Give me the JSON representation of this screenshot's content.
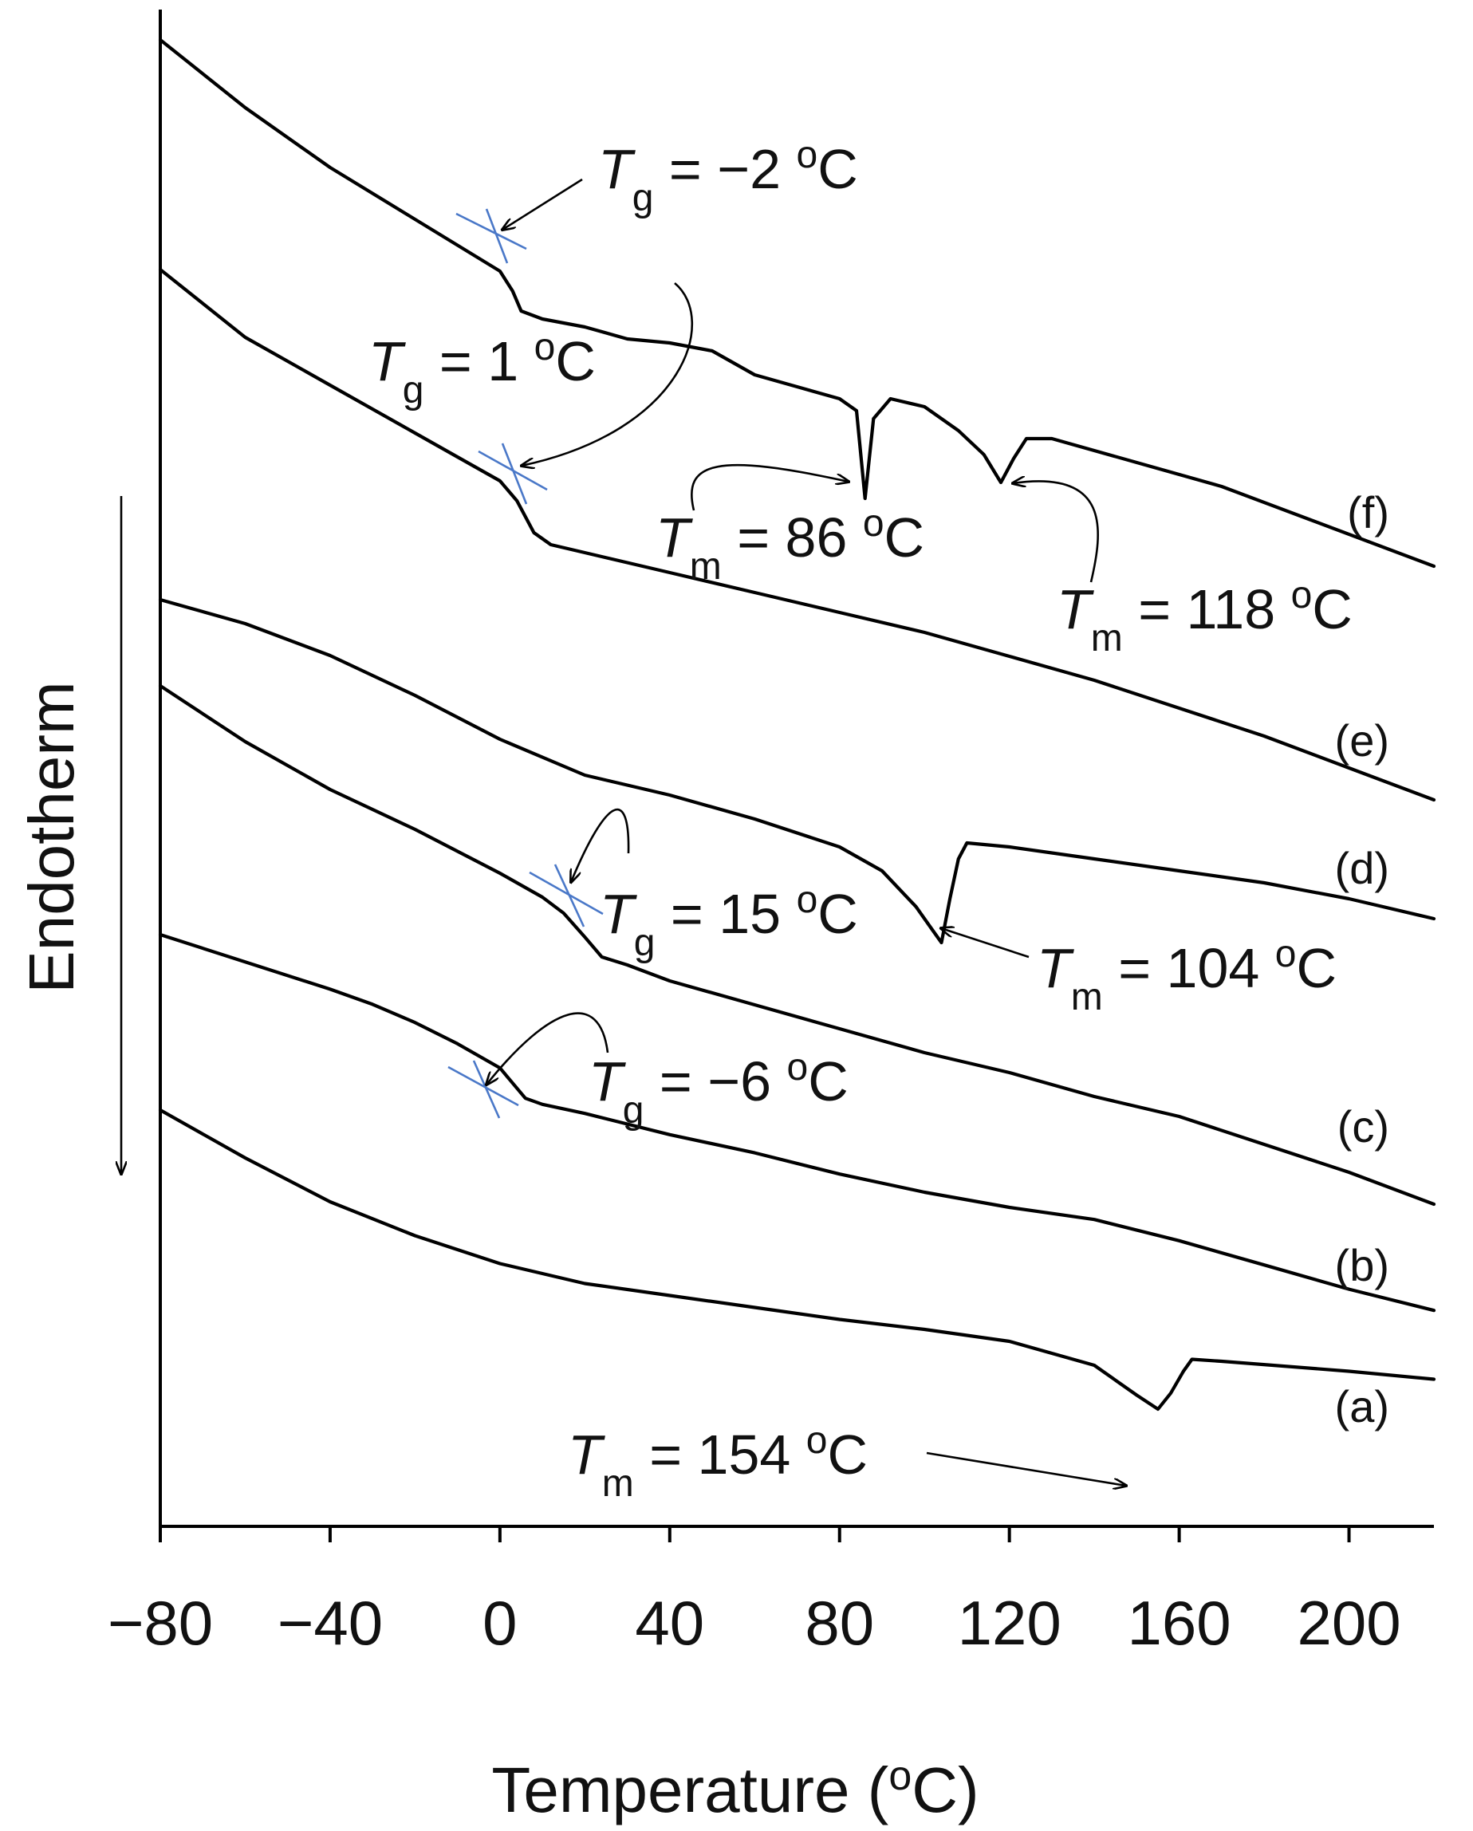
{
  "chart_data": {
    "type": "line",
    "title": "",
    "xlabel": "Temperature (°C)",
    "xlabel_parts": {
      "pre": "Temperature (",
      "sup": "o",
      "post": "C)"
    },
    "ylabel": "Endotherm",
    "xlim": [
      -80,
      220
    ],
    "xticks": [
      -80,
      -40,
      0,
      40,
      80,
      120,
      160,
      200
    ],
    "xtick_labels": [
      "−80",
      "−40",
      "0",
      "40",
      "80",
      "120",
      "160",
      "200"
    ],
    "grid": false,
    "legend": "none",
    "y_arrow_direction": "down",
    "series": [
      {
        "name": "(a)",
        "points": [
          [
            -80,
            0.0
          ],
          [
            -60,
            -0.24
          ],
          [
            -40,
            -0.46
          ],
          [
            -20,
            -0.63
          ],
          [
            0,
            -0.77
          ],
          [
            20,
            -0.87
          ],
          [
            40,
            -0.93
          ],
          [
            60,
            -0.99
          ],
          [
            80,
            -1.05
          ],
          [
            100,
            -1.1
          ],
          [
            120,
            -1.16
          ],
          [
            140,
            -1.28
          ],
          [
            150,
            -1.43
          ],
          [
            155,
            -1.5
          ],
          [
            158,
            -1.42
          ],
          [
            161,
            -1.31
          ],
          [
            163,
            -1.25
          ],
          [
            170,
            -1.26
          ],
          [
            200,
            -1.31
          ],
          [
            220,
            -1.35
          ]
        ],
        "annotations": [
          {
            "type": "Tm",
            "value": 154,
            "text": " = 154 °C"
          }
        ]
      },
      {
        "name": "(b)",
        "points": [
          [
            -80,
            0.0
          ],
          [
            -60,
            -0.09
          ],
          [
            -40,
            -0.18
          ],
          [
            -30,
            -0.23
          ],
          [
            -20,
            -0.29
          ],
          [
            -10,
            -0.36
          ],
          [
            0,
            -0.44
          ],
          [
            3,
            -0.49
          ],
          [
            6,
            -0.54
          ],
          [
            10,
            -0.56
          ],
          [
            20,
            -0.59
          ],
          [
            40,
            -0.66
          ],
          [
            60,
            -0.72
          ],
          [
            80,
            -0.79
          ],
          [
            100,
            -0.85
          ],
          [
            120,
            -0.9
          ],
          [
            140,
            -0.94
          ],
          [
            160,
            -1.01
          ],
          [
            180,
            -1.09
          ],
          [
            200,
            -1.17
          ],
          [
            220,
            -1.24
          ]
        ],
        "annotations": [
          {
            "type": "Tg",
            "value": -6,
            "text": " = −6 °C"
          }
        ]
      },
      {
        "name": "(c)",
        "points": [
          [
            -80,
            0.0
          ],
          [
            -60,
            -0.14
          ],
          [
            -40,
            -0.26
          ],
          [
            -20,
            -0.36
          ],
          [
            0,
            -0.47
          ],
          [
            10,
            -0.53
          ],
          [
            15,
            -0.57
          ],
          [
            20,
            -0.63
          ],
          [
            24,
            -0.68
          ],
          [
            30,
            -0.7
          ],
          [
            40,
            -0.74
          ],
          [
            60,
            -0.8
          ],
          [
            80,
            -0.86
          ],
          [
            100,
            -0.92
          ],
          [
            120,
            -0.97
          ],
          [
            140,
            -1.03
          ],
          [
            160,
            -1.08
          ],
          [
            180,
            -1.15
          ],
          [
            200,
            -1.22
          ],
          [
            220,
            -1.3
          ]
        ],
        "annotations": [
          {
            "type": "Tg",
            "value": 15,
            "text": " = 15 °C"
          }
        ]
      },
      {
        "name": "(d)",
        "points": [
          [
            -80,
            0.0
          ],
          [
            -60,
            -0.06
          ],
          [
            -40,
            -0.14
          ],
          [
            -20,
            -0.24
          ],
          [
            0,
            -0.35
          ],
          [
            20,
            -0.44
          ],
          [
            40,
            -0.49
          ],
          [
            60,
            -0.55
          ],
          [
            80,
            -0.62
          ],
          [
            90,
            -0.68
          ],
          [
            98,
            -0.77
          ],
          [
            102,
            -0.83
          ],
          [
            104,
            -0.86
          ],
          [
            106,
            -0.75
          ],
          [
            108,
            -0.65
          ],
          [
            110,
            -0.61
          ],
          [
            120,
            -0.62
          ],
          [
            140,
            -0.65
          ],
          [
            160,
            -0.68
          ],
          [
            180,
            -0.71
          ],
          [
            200,
            -0.75
          ],
          [
            220,
            -0.8
          ]
        ],
        "annotations": [
          {
            "type": "Tm",
            "value": 104,
            "text": " = 104 °C"
          }
        ]
      },
      {
        "name": "(e)",
        "points": [
          [
            -80,
            0.0
          ],
          [
            -60,
            -0.17
          ],
          [
            -40,
            -0.29
          ],
          [
            -20,
            -0.41
          ],
          [
            -10,
            -0.47
          ],
          [
            0,
            -0.53
          ],
          [
            4,
            -0.58
          ],
          [
            8,
            -0.66
          ],
          [
            12,
            -0.69
          ],
          [
            20,
            -0.71
          ],
          [
            40,
            -0.76
          ],
          [
            60,
            -0.81
          ],
          [
            80,
            -0.86
          ],
          [
            100,
            -0.91
          ],
          [
            120,
            -0.97
          ],
          [
            140,
            -1.03
          ],
          [
            160,
            -1.1
          ],
          [
            180,
            -1.17
          ],
          [
            200,
            -1.25
          ],
          [
            220,
            -1.33
          ]
        ],
        "annotations": [
          {
            "type": "Tg",
            "value": 1,
            "text": " = 1 °C"
          }
        ]
      },
      {
        "name": "(f)",
        "points": [
          [
            -80,
            0.0
          ],
          [
            -60,
            -0.17
          ],
          [
            -40,
            -0.32
          ],
          [
            -20,
            -0.45
          ],
          [
            0,
            -0.58
          ],
          [
            3,
            -0.63
          ],
          [
            5,
            -0.68
          ],
          [
            10,
            -0.7
          ],
          [
            20,
            -0.72
          ],
          [
            30,
            -0.75
          ],
          [
            40,
            -0.76
          ],
          [
            50,
            -0.78
          ],
          [
            60,
            -0.84
          ],
          [
            70,
            -0.87
          ],
          [
            80,
            -0.9
          ],
          [
            84,
            -0.93
          ],
          [
            86,
            -1.15
          ],
          [
            88,
            -0.95
          ],
          [
            92,
            -0.9
          ],
          [
            100,
            -0.92
          ],
          [
            108,
            -0.98
          ],
          [
            114,
            -1.04
          ],
          [
            118,
            -1.11
          ],
          [
            121,
            -1.05
          ],
          [
            124,
            -1.0
          ],
          [
            130,
            -1.0
          ],
          [
            150,
            -1.06
          ],
          [
            170,
            -1.12
          ],
          [
            190,
            -1.2
          ],
          [
            220,
            -1.32
          ]
        ],
        "annotations": [
          {
            "type": "Tg",
            "value": -2,
            "text": " = −2 °C"
          },
          {
            "type": "Tm",
            "value": 86,
            "text": " = 86 °C"
          },
          {
            "type": "Tm",
            "value": 118,
            "text": " = 118 °C"
          }
        ]
      }
    ]
  },
  "annotations_text": {
    "tg_var": "T",
    "tg_sub": "g",
    "tm_var": "T",
    "tm_sub": "m",
    "deg_o": "o",
    "unit_c": "C",
    "a_tm": " = 154 ",
    "b_tg": " = −6 ",
    "c_tg": " = 15 ",
    "d_tm": " = 104 ",
    "e_tg": " = 1 ",
    "f_tg": " = −2 ",
    "f_tm1": " = 86 ",
    "f_tm2": " = 118 "
  },
  "colors": {
    "curve": "#000000",
    "tg_tangent": "#4a78c8",
    "background": "#ffffff"
  }
}
